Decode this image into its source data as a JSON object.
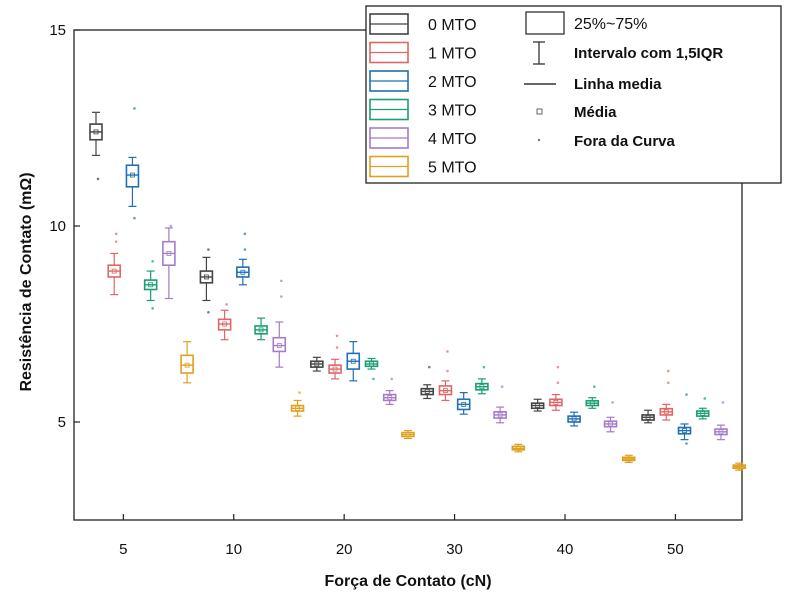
{
  "chart_data": {
    "type": "box",
    "xlabel": "Força de Contato (cN)",
    "ylabel": "Resistência de Contato (mΩ)",
    "categories": [
      "5",
      "10",
      "20",
      "30",
      "40",
      "50"
    ],
    "yticks": [
      "5",
      "10",
      "15"
    ],
    "ylim": [
      2.5,
      15
    ],
    "legend_position": "top-right",
    "legend_stats": {
      "box": "25%~75%",
      "whisker": "Intervalo com 1,5IQR",
      "median": "Linha media",
      "mean": "Média",
      "outlier": "Fora da Curva"
    },
    "series": [
      {
        "name": "0 MTO",
        "color": "#444444",
        "boxes": [
          {
            "q1": 12.2,
            "median": 12.4,
            "q3": 12.6,
            "mean": 12.4,
            "whisker_low": 11.8,
            "whisker_high": 12.9,
            "outliers": [
              11.2
            ]
          },
          {
            "q1": 8.55,
            "median": 8.7,
            "q3": 8.85,
            "mean": 8.7,
            "whisker_low": 8.1,
            "whisker_high": 9.2,
            "outliers": [
              7.8,
              9.4
            ]
          },
          {
            "q1": 6.4,
            "median": 6.48,
            "q3": 6.55,
            "mean": 6.48,
            "whisker_low": 6.3,
            "whisker_high": 6.65,
            "outliers": []
          },
          {
            "q1": 5.7,
            "median": 5.78,
            "q3": 5.85,
            "mean": 5.78,
            "whisker_low": 5.6,
            "whisker_high": 5.95,
            "outliers": [
              6.4
            ]
          },
          {
            "q1": 5.35,
            "median": 5.42,
            "q3": 5.48,
            "mean": 5.42,
            "whisker_low": 5.28,
            "whisker_high": 5.58,
            "outliers": []
          },
          {
            "q1": 5.05,
            "median": 5.12,
            "q3": 5.18,
            "mean": 5.12,
            "whisker_low": 4.98,
            "whisker_high": 5.3,
            "outliers": []
          }
        ]
      },
      {
        "name": "1 MTO",
        "color": "#e06666",
        "boxes": [
          {
            "q1": 8.7,
            "median": 8.85,
            "q3": 9.0,
            "mean": 8.85,
            "whisker_low": 8.25,
            "whisker_high": 9.3,
            "outliers": [
              9.6,
              9.8
            ]
          },
          {
            "q1": 7.35,
            "median": 7.5,
            "q3": 7.62,
            "mean": 7.5,
            "whisker_low": 7.1,
            "whisker_high": 7.85,
            "outliers": [
              8.0
            ]
          },
          {
            "q1": 6.25,
            "median": 6.35,
            "q3": 6.45,
            "mean": 6.35,
            "whisker_low": 6.1,
            "whisker_high": 6.6,
            "outliers": [
              7.2,
              6.9
            ]
          },
          {
            "q1": 5.7,
            "median": 5.8,
            "q3": 5.92,
            "mean": 5.8,
            "whisker_low": 5.55,
            "whisker_high": 6.05,
            "outliers": [
              6.3,
              6.8
            ]
          },
          {
            "q1": 5.42,
            "median": 5.5,
            "q3": 5.58,
            "mean": 5.5,
            "whisker_low": 5.3,
            "whisker_high": 5.7,
            "outliers": [
              6.0,
              6.4
            ]
          },
          {
            "q1": 5.18,
            "median": 5.26,
            "q3": 5.34,
            "mean": 5.26,
            "whisker_low": 5.05,
            "whisker_high": 5.45,
            "outliers": [
              6.0,
              6.3
            ]
          }
        ]
      },
      {
        "name": "2 MTO",
        "color": "#1f6fb4",
        "boxes": [
          {
            "q1": 11.0,
            "median": 11.3,
            "q3": 11.55,
            "mean": 11.3,
            "whisker_low": 10.5,
            "whisker_high": 11.75,
            "outliers": [
              10.2,
              13.0
            ]
          },
          {
            "q1": 8.7,
            "median": 8.82,
            "q3": 8.95,
            "mean": 8.82,
            "whisker_low": 8.5,
            "whisker_high": 9.15,
            "outliers": [
              9.4,
              9.8
            ]
          },
          {
            "q1": 6.35,
            "median": 6.55,
            "q3": 6.75,
            "mean": 6.55,
            "whisker_low": 6.05,
            "whisker_high": 7.05,
            "outliers": []
          },
          {
            "q1": 5.32,
            "median": 5.45,
            "q3": 5.58,
            "mean": 5.45,
            "whisker_low": 5.2,
            "whisker_high": 5.75,
            "outliers": []
          },
          {
            "q1": 5.0,
            "median": 5.08,
            "q3": 5.15,
            "mean": 5.08,
            "whisker_low": 4.9,
            "whisker_high": 5.25,
            "outliers": []
          },
          {
            "q1": 4.7,
            "median": 4.78,
            "q3": 4.86,
            "mean": 4.78,
            "whisker_low": 4.55,
            "whisker_high": 4.95,
            "outliers": [
              4.45,
              5.7
            ]
          }
        ]
      },
      {
        "name": "3 MTO",
        "color": "#1a9e72",
        "boxes": [
          {
            "q1": 8.38,
            "median": 8.5,
            "q3": 8.62,
            "mean": 8.5,
            "whisker_low": 8.1,
            "whisker_high": 8.85,
            "outliers": [
              7.9,
              9.1
            ]
          },
          {
            "q1": 7.25,
            "median": 7.35,
            "q3": 7.45,
            "mean": 7.35,
            "whisker_low": 7.1,
            "whisker_high": 7.65,
            "outliers": []
          },
          {
            "q1": 6.42,
            "median": 6.48,
            "q3": 6.55,
            "mean": 6.48,
            "whisker_low": 6.35,
            "whisker_high": 6.62,
            "outliers": [
              6.1
            ]
          },
          {
            "q1": 5.82,
            "median": 5.9,
            "q3": 5.98,
            "mean": 5.9,
            "whisker_low": 5.72,
            "whisker_high": 6.1,
            "outliers": [
              6.4
            ]
          },
          {
            "q1": 5.42,
            "median": 5.48,
            "q3": 5.54,
            "mean": 5.48,
            "whisker_low": 5.35,
            "whisker_high": 5.62,
            "outliers": [
              5.9
            ]
          },
          {
            "q1": 5.15,
            "median": 5.22,
            "q3": 5.28,
            "mean": 5.22,
            "whisker_low": 5.08,
            "whisker_high": 5.35,
            "outliers": [
              5.6
            ]
          }
        ]
      },
      {
        "name": "4 MTO",
        "color": "#a47cc8",
        "boxes": [
          {
            "q1": 9.0,
            "median": 9.3,
            "q3": 9.6,
            "mean": 9.3,
            "whisker_low": 8.15,
            "whisker_high": 9.95,
            "outliers": [
              10.0
            ]
          },
          {
            "q1": 6.8,
            "median": 6.95,
            "q3": 7.15,
            "mean": 6.95,
            "whisker_low": 6.4,
            "whisker_high": 7.55,
            "outliers": [
              8.2,
              8.6
            ]
          },
          {
            "q1": 5.55,
            "median": 5.62,
            "q3": 5.7,
            "mean": 5.62,
            "whisker_low": 5.45,
            "whisker_high": 5.8,
            "outliers": [
              6.1
            ]
          },
          {
            "q1": 5.1,
            "median": 5.18,
            "q3": 5.26,
            "mean": 5.18,
            "whisker_low": 4.98,
            "whisker_high": 5.38,
            "outliers": [
              5.9
            ]
          },
          {
            "q1": 4.88,
            "median": 4.95,
            "q3": 5.02,
            "mean": 4.95,
            "whisker_low": 4.75,
            "whisker_high": 5.12,
            "outliers": [
              5.5
            ]
          },
          {
            "q1": 4.68,
            "median": 4.75,
            "q3": 4.82,
            "mean": 4.75,
            "whisker_low": 4.55,
            "whisker_high": 4.92,
            "outliers": [
              5.5
            ]
          }
        ]
      },
      {
        "name": "5 MTO",
        "color": "#e0a020",
        "boxes": [
          {
            "q1": 6.25,
            "median": 6.45,
            "q3": 6.7,
            "mean": 6.45,
            "whisker_low": 6.0,
            "whisker_high": 7.05,
            "outliers": []
          },
          {
            "q1": 5.28,
            "median": 5.35,
            "q3": 5.42,
            "mean": 5.35,
            "whisker_low": 5.15,
            "whisker_high": 5.55,
            "outliers": [
              5.75
            ]
          },
          {
            "q1": 4.63,
            "median": 4.68,
            "q3": 4.73,
            "mean": 4.68,
            "whisker_low": 4.58,
            "whisker_high": 4.78,
            "outliers": []
          },
          {
            "q1": 4.29,
            "median": 4.33,
            "q3": 4.38,
            "mean": 4.33,
            "whisker_low": 4.24,
            "whisker_high": 4.43,
            "outliers": []
          },
          {
            "q1": 4.02,
            "median": 4.06,
            "q3": 4.1,
            "mean": 4.06,
            "whisker_low": 3.97,
            "whisker_high": 4.15,
            "outliers": []
          },
          {
            "q1": 3.82,
            "median": 3.86,
            "q3": 3.9,
            "mean": 3.86,
            "whisker_low": 3.77,
            "whisker_high": 3.95,
            "outliers": []
          }
        ]
      }
    ]
  }
}
